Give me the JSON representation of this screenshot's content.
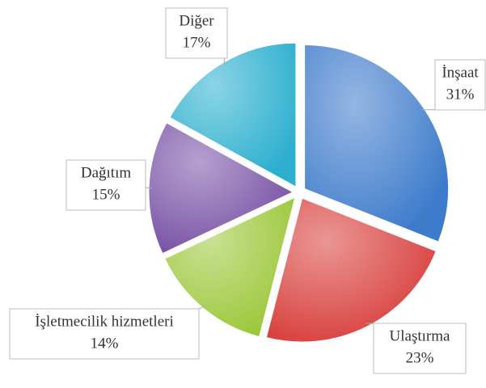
{
  "chart_data": {
    "type": "pie",
    "categories": [
      "İnşaat",
      "Ulaştırma",
      "İşletmecilik hizmetleri",
      "Dağıtım",
      "Diğer"
    ],
    "values": [
      31,
      23,
      14,
      15,
      17
    ],
    "value_labels": [
      "31%",
      "23%",
      "14%",
      "15%",
      "17%"
    ],
    "colors": [
      "#3d7bcb",
      "#d8403d",
      "#9cc83a",
      "#7952a6",
      "#2db0cf"
    ]
  }
}
